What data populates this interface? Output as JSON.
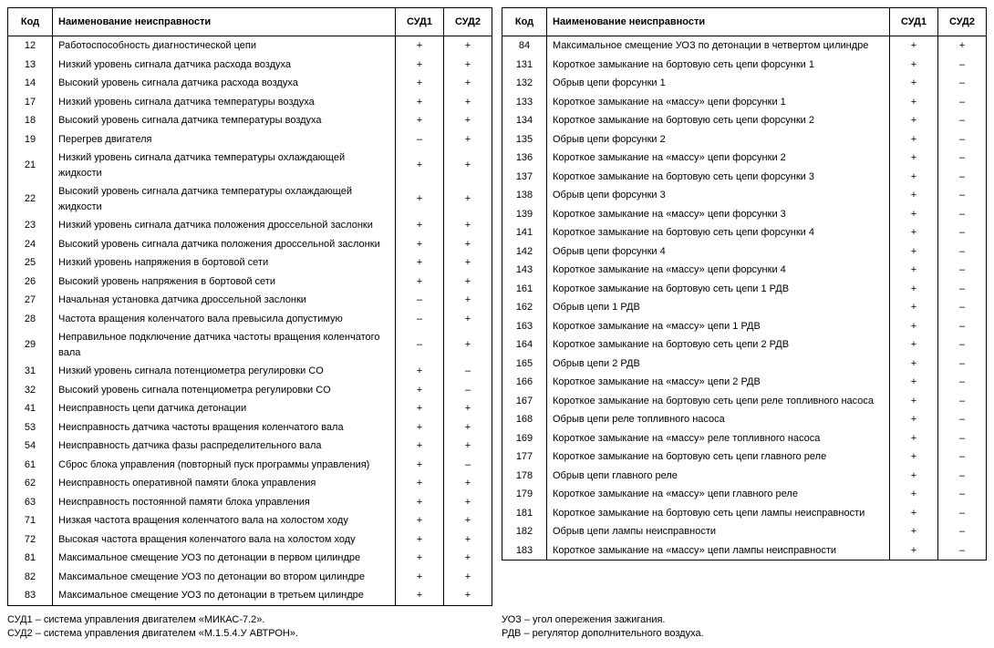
{
  "headers": {
    "code": "Код",
    "name": "Наименование неисправности",
    "sud1": "СУД1",
    "sud2": "СУД2"
  },
  "left_rows": [
    {
      "code": "12",
      "name": "Работоспособность диагностической цепи",
      "s1": "+",
      "s2": "+"
    },
    {
      "code": "13",
      "name": "Низкий уровень сигнала датчика расхода воздуха",
      "s1": "+",
      "s2": "+"
    },
    {
      "code": "14",
      "name": "Высокий уровень сигнала датчика расхода воздуха",
      "s1": "+",
      "s2": "+"
    },
    {
      "code": "17",
      "name": "Низкий уровень сигнала датчика температуры воздуха",
      "s1": "+",
      "s2": "+"
    },
    {
      "code": "18",
      "name": "Высокий уровень сигнала датчика температуры воздуха",
      "s1": "+",
      "s2": "+"
    },
    {
      "code": "19",
      "name": "Перегрев двигателя",
      "s1": "–",
      "s2": "+"
    },
    {
      "code": "21",
      "name": "Низкий уровень сигнала датчика температуры охлаждающей жидкости",
      "s1": "+",
      "s2": "+"
    },
    {
      "code": "22",
      "name": "Высокий уровень сигнала датчика температуры охлаждающей жидкости",
      "s1": "+",
      "s2": "+"
    },
    {
      "code": "23",
      "name": "Низкий уровень сигнала датчика положения дроссельной заслонки",
      "s1": "+",
      "s2": "+"
    },
    {
      "code": "24",
      "name": "Высокий уровень сигнала датчика положения дроссельной заслонки",
      "s1": "+",
      "s2": "+"
    },
    {
      "code": "25",
      "name": "Низкий уровень напряжения в бортовой сети",
      "s1": "+",
      "s2": "+"
    },
    {
      "code": "26",
      "name": "Высокий уровень напряжения в бортовой сети",
      "s1": "+",
      "s2": "+"
    },
    {
      "code": "27",
      "name": "Начальная установка датчика дроссельной заслонки",
      "s1": "–",
      "s2": "+"
    },
    {
      "code": "28",
      "name": "Частота вращения коленчатого вала превысила допустимую",
      "s1": "–",
      "s2": "+"
    },
    {
      "code": "29",
      "name": "Неправильное подключение датчика частоты вращения коленчатого вала",
      "s1": "–",
      "s2": "+"
    },
    {
      "code": "31",
      "name": "Низкий уровень сигнала потенциометра регулировки CO",
      "s1": "+",
      "s2": "–"
    },
    {
      "code": "32",
      "name": "Высокий уровень сигнала потенциометра регулировки CO",
      "s1": "+",
      "s2": "–"
    },
    {
      "code": "41",
      "name": "Неисправность цепи датчика детонации",
      "s1": "+",
      "s2": "+"
    },
    {
      "code": "53",
      "name": "Неисправность датчика частоты вращения коленчатого вала",
      "s1": "+",
      "s2": "+"
    },
    {
      "code": "54",
      "name": "Неисправность датчика фазы распределительного вала",
      "s1": "+",
      "s2": "+"
    },
    {
      "code": "61",
      "name": "Сброс блока управления (повторный пуск программы управления)",
      "s1": "+",
      "s2": "–"
    },
    {
      "code": "62",
      "name": "Неисправность оперативной памяти блока управления",
      "s1": "+",
      "s2": "+"
    },
    {
      "code": "63",
      "name": "Неисправность постоянной памяти блока управления",
      "s1": "+",
      "s2": "+"
    },
    {
      "code": "71",
      "name": "Низкая частота вращения коленчатого вала на холостом ходу",
      "s1": "+",
      "s2": "+"
    },
    {
      "code": "72",
      "name": "Высокая частота вращения коленчатого вала на холостом ходу",
      "s1": "+",
      "s2": "+"
    },
    {
      "code": "81",
      "name": "Максимальное смещение УОЗ по детонации в первом цилиндре",
      "s1": "+",
      "s2": "+"
    },
    {
      "code": "82",
      "name": "Максимальное смещение УОЗ по детонации во втором цилиндре",
      "s1": "+",
      "s2": "+"
    },
    {
      "code": "83",
      "name": "Максимальное смещение УОЗ по детонации в третьем цилиндре",
      "s1": "+",
      "s2": "+"
    }
  ],
  "right_rows": [
    {
      "code": "84",
      "name": "Максимальное смещение УОЗ по детонации в четвертом цилиндре",
      "s1": "+",
      "s2": "+"
    },
    {
      "code": "131",
      "name": "Короткое замыкание на бортовую сеть цепи форсунки 1",
      "s1": "+",
      "s2": "–"
    },
    {
      "code": "132",
      "name": "Обрыв цепи форсунки 1",
      "s1": "+",
      "s2": "–"
    },
    {
      "code": "133",
      "name": "Короткое замыкание на «массу» цепи форсунки 1",
      "s1": "+",
      "s2": "–"
    },
    {
      "code": "134",
      "name": "Короткое замыкание на бортовую сеть цепи форсунки 2",
      "s1": "+",
      "s2": "–"
    },
    {
      "code": "135",
      "name": "Обрыв цепи форсунки 2",
      "s1": "+",
      "s2": "–"
    },
    {
      "code": "136",
      "name": "Короткое замыкание на «массу» цепи форсунки 2",
      "s1": "+",
      "s2": "–"
    },
    {
      "code": "137",
      "name": "Короткое замыкание на бортовую сеть цепи форсунки 3",
      "s1": "+",
      "s2": "–"
    },
    {
      "code": "138",
      "name": "Обрыв цепи форсунки 3",
      "s1": "+",
      "s2": "–"
    },
    {
      "code": "139",
      "name": "Короткое замыкание на «массу» цепи форсунки 3",
      "s1": "+",
      "s2": "–"
    },
    {
      "code": "141",
      "name": "Короткое замыкание на бортовую сеть цепи форсунки 4",
      "s1": "+",
      "s2": "–"
    },
    {
      "code": "142",
      "name": "Обрыв цепи форсунки 4",
      "s1": "+",
      "s2": "–"
    },
    {
      "code": "143",
      "name": "Короткое замыкание на «массу» цепи форсунки 4",
      "s1": "+",
      "s2": "–"
    },
    {
      "code": "161",
      "name": "Короткое замыкание на бортовую сеть цепи 1 РДВ",
      "s1": "+",
      "s2": "–"
    },
    {
      "code": "162",
      "name": "Обрыв цепи 1 РДВ",
      "s1": "+",
      "s2": "–"
    },
    {
      "code": "163",
      "name": "Короткое замыкание на «массу» цепи 1 РДВ",
      "s1": "+",
      "s2": "–"
    },
    {
      "code": "164",
      "name": "Короткое замыкание на бортовую сеть цепи 2 РДВ",
      "s1": "+",
      "s2": "–"
    },
    {
      "code": "165",
      "name": "Обрыв цепи 2 РДВ",
      "s1": "+",
      "s2": "–"
    },
    {
      "code": "166",
      "name": "Короткое замыкание на «массу» цепи 2 РДВ",
      "s1": "+",
      "s2": "–"
    },
    {
      "code": "167",
      "name": "Короткое замыкание на бортовую сеть цепи реле топливного насоса",
      "s1": "+",
      "s2": "–"
    },
    {
      "code": "168",
      "name": "Обрыв цепи реле топливного насоса",
      "s1": "+",
      "s2": "–"
    },
    {
      "code": "169",
      "name": "Короткое замыкание на «массу» реле топливного насоса",
      "s1": "+",
      "s2": "–"
    },
    {
      "code": "177",
      "name": "Короткое замыкание на бортовую сеть цепи главного реле",
      "s1": "+",
      "s2": "–"
    },
    {
      "code": "178",
      "name": "Обрыв цепи главного реле",
      "s1": "+",
      "s2": "–"
    },
    {
      "code": "179",
      "name": "Короткое замыкание на «массу» цепи главного реле",
      "s1": "+",
      "s2": "–"
    },
    {
      "code": "181",
      "name": "Короткое замыкание на бортовую сеть цепи лампы неисправности",
      "s1": "+",
      "s2": "–"
    },
    {
      "code": "182",
      "name": "Обрыв цепи лампы неисправности",
      "s1": "+",
      "s2": "–"
    },
    {
      "code": "183",
      "name": "Короткое замыкание на «массу» цепи лампы неисправности",
      "s1": "+",
      "s2": "–"
    }
  ],
  "footnotes": {
    "left": [
      "СУД1 – система управления двигателем «МИКАС-7.2».",
      "СУД2 – система управления двигателем «М.1.5.4.У АВТРОН»."
    ],
    "right": [
      "УОЗ – угол опережения зажигания.",
      "РДВ – регулятор дополнительного воздуха."
    ]
  }
}
